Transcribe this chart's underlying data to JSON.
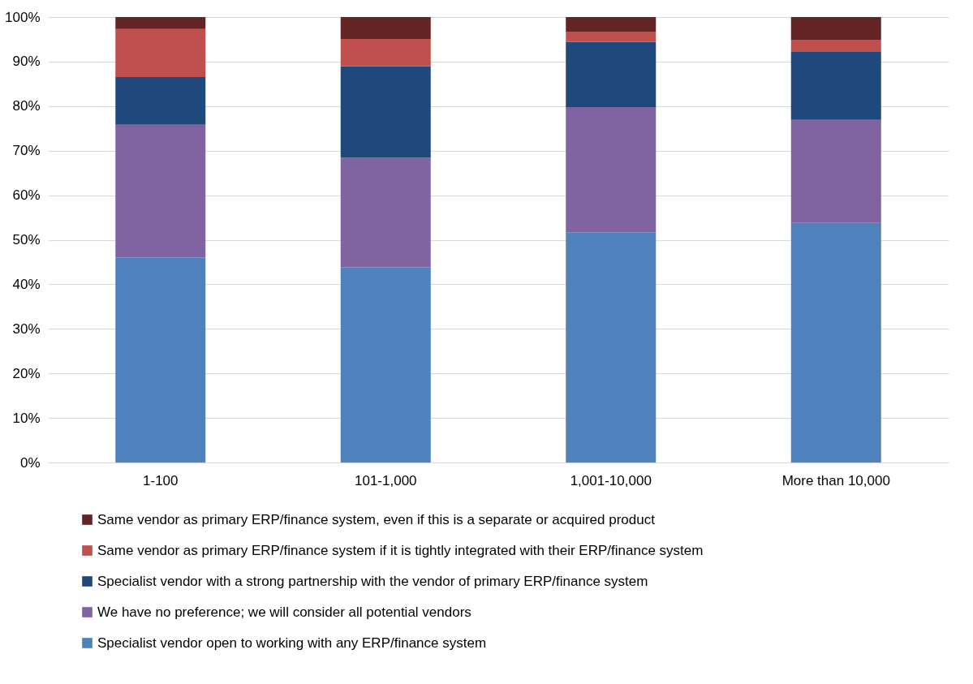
{
  "chart_data": {
    "type": "bar",
    "stacked": true,
    "categories": [
      "1-100",
      "101-1,000",
      "1,001-10,000",
      "More than 10,000"
    ],
    "series": [
      {
        "name": "Specialist vendor open to working with any  ERP/finance system",
        "color": "#4f81bd",
        "values": [
          46.0,
          43.8,
          51.7,
          53.8
        ]
      },
      {
        "name": "We have no preference; we will consider all potential vendors",
        "color": "#8064a2",
        "values": [
          29.8,
          24.6,
          28.1,
          23.1
        ]
      },
      {
        "name": "Specialist vendor with a strong partnership with the vendor of primary ERP/finance system",
        "color": "#1f497d",
        "values": [
          10.7,
          20.6,
          14.6,
          15.4
        ]
      },
      {
        "name": "Same vendor as primary ERP/finance system if it is tightly integrated with their ERP/finance system",
        "color": "#c0504d",
        "values": [
          10.8,
          6.1,
          2.3,
          2.6
        ]
      },
      {
        "name": "Same vendor as primary ERP/finance system, even if this is a separate or acquired product",
        "color": "#632423",
        "values": [
          2.7,
          4.9,
          3.3,
          5.1
        ]
      }
    ],
    "ylim": [
      0,
      100
    ],
    "yticks": [
      {
        "value": 0,
        "label": "0%"
      },
      {
        "value": 10,
        "label": "10%"
      },
      {
        "value": 20,
        "label": "20%"
      },
      {
        "value": 30,
        "label": "30%"
      },
      {
        "value": 40,
        "label": "40%"
      },
      {
        "value": 50,
        "label": "50%"
      },
      {
        "value": 60,
        "label": "60%"
      },
      {
        "value": 70,
        "label": "70%"
      },
      {
        "value": 80,
        "label": "80%"
      },
      {
        "value": 90,
        "label": "90%"
      },
      {
        "value": 100,
        "label": "100%"
      }
    ],
    "grid": "y",
    "legend": "bottom"
  }
}
